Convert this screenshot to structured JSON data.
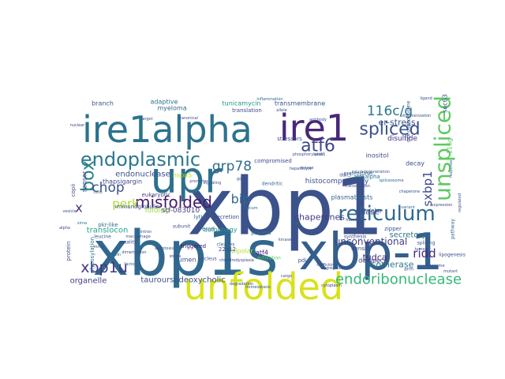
{
  "words": [
    {
      "text": "xbp1",
      "color": "#3b528b"
    },
    {
      "text": "xbp1s",
      "color": "#31688e"
    },
    {
      "text": "xbp-1",
      "color": "#355f8d"
    },
    {
      "text": "ire1alpha",
      "color": "#2c728e"
    },
    {
      "text": "ire1",
      "color": "#482777"
    },
    {
      "text": "upr",
      "color": "#2d708e"
    },
    {
      "text": "unfolded",
      "color": "#d8e219"
    },
    {
      "text": "unspliced",
      "color": "#5ec962"
    },
    {
      "text": "reticulum",
      "color": "#31688e"
    },
    {
      "text": "endoplasmic",
      "color": "#2a788e"
    },
    {
      "text": "box",
      "color": "#26828e"
    },
    {
      "text": "misfolded",
      "color": "#481a6c"
    },
    {
      "text": "atf6",
      "color": "#3e4989"
    },
    {
      "text": "spliced",
      "color": "#3b528b"
    },
    {
      "text": "116c/g",
      "color": "#2a788e"
    },
    {
      "text": "endoribonuclease",
      "color": "#35b779"
    },
    {
      "text": "xbp1u",
      "color": "#443983"
    },
    {
      "text": "grp78",
      "color": "#2f6c8e"
    },
    {
      "text": "chop",
      "color": "#3b528b"
    },
    {
      "text": "perk",
      "color": "#addc30"
    },
    {
      "text": "sxbp1",
      "color": "#3e4a89"
    },
    {
      "text": "ridd",
      "color": "#472c7a"
    },
    {
      "text": "bip",
      "color": "#31688e"
    },
    {
      "text": "x",
      "color": "#472f7d"
    },
    {
      "text": "unconventional",
      "color": "#433e85"
    },
    {
      "text": "er-stress",
      "color": "#3b528b"
    },
    {
      "text": "tauroursodeoxycholic",
      "color": "#3b528b"
    },
    {
      "text": "translocon",
      "color": "#20a486"
    },
    {
      "text": "chaperones",
      "color": "#433e85"
    },
    {
      "text": "secretory",
      "color": "#2c728e"
    },
    {
      "text": "isomerase",
      "color": "#2a788e"
    },
    {
      "text": "tudca",
      "color": "#482475"
    },
    {
      "text": "rnase",
      "color": "#3b528b"
    },
    {
      "text": "organelle",
      "color": "#433e85"
    },
    {
      "text": "disulfide",
      "color": "#46327e"
    },
    {
      "text": "folding",
      "color": "#9bd93c"
    },
    {
      "text": "stf-083010",
      "color": "#433e85"
    },
    {
      "text": "sensor",
      "color": "#3e4a89"
    },
    {
      "text": "tunicamycin",
      "color": "#1f958b"
    },
    {
      "text": "transmembrane",
      "color": "#39568c"
    },
    {
      "text": "myeloma",
      "color": "#31688e"
    },
    {
      "text": "adaptive",
      "color": "#2c728e"
    },
    {
      "text": "branch",
      "color": "#39568c"
    },
    {
      "text": "translation",
      "color": "#3e4989"
    },
    {
      "text": "endonuclease",
      "color": "#3b528b"
    },
    {
      "text": "hspa5",
      "color": "#b5de2b"
    },
    {
      "text": "thapsigargin",
      "color": "#3e4a89"
    },
    {
      "text": "bipolar",
      "color": "#b5de2b"
    },
    {
      "text": "autophagy",
      "color": "#1f958b"
    },
    {
      "text": "atf4",
      "color": "#482173"
    },
    {
      "text": "lumen",
      "color": "#3b528b"
    },
    {
      "text": "pkr-like",
      "color": "#2c728e"
    },
    {
      "text": "histocompatibility",
      "color": "#3b528b"
    },
    {
      "text": "deltaiec",
      "color": "#404688"
    },
    {
      "text": "plasmablasts",
      "color": "#33638d"
    },
    {
      "text": "inositol",
      "color": "#3e4989"
    },
    {
      "text": "decay",
      "color": "#3b528b"
    },
    {
      "text": "sec63",
      "color": "#38598c"
    },
    {
      "text": "116g",
      "color": "#5ec962"
    },
    {
      "text": "eif2alpha",
      "color": "#3b528b"
    },
    {
      "text": "atf6alpha",
      "color": "#2a788e"
    },
    {
      "text": "copii",
      "color": "#3e4a89"
    },
    {
      "text": "immunoglobulin",
      "color": "#3b528b"
    },
    {
      "text": "eukaryotic",
      "color": "#433e85"
    },
    {
      "text": "erad",
      "color": "#2a788e"
    },
    {
      "text": "22q12",
      "color": "#3e4989"
    },
    {
      "text": "pdi",
      "color": "#3b528b"
    },
    {
      "text": "triggered",
      "color": "#481467"
    },
    {
      "text": "plasma",
      "color": "#2a788e"
    },
    {
      "text": "secretion",
      "color": "#3e4a89"
    },
    {
      "text": "lytic",
      "color": "#31688e"
    },
    {
      "text": "zipper",
      "color": "#3b528b"
    },
    {
      "text": "protein",
      "color": "#3e4a89"
    },
    {
      "text": "glycosylation",
      "color": "#2c728e"
    },
    {
      "text": "density",
      "color": "#3e4989"
    },
    {
      "text": "compromised",
      "color": "#3e4989"
    },
    {
      "text": "stressors",
      "color": "#3b528b"
    },
    {
      "text": "proteostasis",
      "color": "#31688e"
    },
    {
      "text": "arm",
      "color": "#3b528b"
    },
    {
      "text": "leucine",
      "color": "#3b528b"
    },
    {
      "text": "cleaves",
      "color": "#31688e"
    },
    {
      "text": "ddit3",
      "color": "#3b528b"
    },
    {
      "text": "quality",
      "color": "#3e4a89"
    },
    {
      "text": "diphosphocholine",
      "color": "#3b528b"
    },
    {
      "text": "lipogenesis",
      "color": "#3e4a89"
    },
    {
      "text": "subunit",
      "color": "#3b528b"
    },
    {
      "text": "activation",
      "color": "#5ec962"
    },
    {
      "text": "nucleus",
      "color": "#3b528b"
    },
    {
      "text": "dendritic",
      "color": "#31688e"
    },
    {
      "text": "synthesis",
      "color": "#3e4a89"
    },
    {
      "text": "splicing",
      "color": "#3b528b"
    },
    {
      "text": "degradation",
      "color": "#3e4989"
    },
    {
      "text": "variant",
      "color": "#31688e"
    },
    {
      "text": "kinase",
      "color": "#3b528b"
    },
    {
      "text": "trafficking",
      "color": "#3e4a89"
    },
    {
      "text": "homeostasis",
      "color": "#3b528b"
    },
    {
      "text": "cytoplasm",
      "color": "#3e4989"
    },
    {
      "text": "pathway",
      "color": "#31688e"
    },
    {
      "text": "macrophage",
      "color": "#3b528b"
    },
    {
      "text": "hepatocyte",
      "color": "#3e4a89"
    },
    {
      "text": "phosphorylation",
      "color": "#3b528b"
    },
    {
      "text": "chondrodysplasia",
      "color": "#3e4989"
    },
    {
      "text": "neurodegeneration",
      "color": "#3b528b"
    },
    {
      "text": "insulin",
      "color": "#31688e"
    },
    {
      "text": "sec61",
      "color": "#3b528b"
    },
    {
      "text": "mrna",
      "color": "#3e4a89"
    },
    {
      "text": "intron",
      "color": "#3b528b"
    },
    {
      "text": "cargo",
      "color": "#3e4a89"
    },
    {
      "text": "aggregates",
      "color": "#3b528b"
    },
    {
      "text": "lipid",
      "color": "#31688e"
    },
    {
      "text": "golgi",
      "color": "#3e4989"
    },
    {
      "text": "antibody",
      "color": "#3b528b"
    },
    {
      "text": "dimerization",
      "color": "#3e4a89"
    },
    {
      "text": "oligomerization",
      "color": "#3b528b"
    },
    {
      "text": "sirna",
      "color": "#31688e"
    },
    {
      "text": "promoter",
      "color": "#3b528b"
    },
    {
      "text": "transcription",
      "color": "#3e4989"
    },
    {
      "text": "ligand",
      "color": "#3b528b"
    },
    {
      "text": "tumor",
      "color": "#3e4a89"
    },
    {
      "text": "calcium",
      "color": "#31688e"
    },
    {
      "text": "signaling",
      "color": "#3b528b"
    },
    {
      "text": "stress",
      "color": "#3e4989"
    },
    {
      "text": "mouse",
      "color": "#3b528b"
    },
    {
      "text": "human",
      "color": "#3e4a89"
    },
    {
      "text": "cells",
      "color": "#31688e"
    },
    {
      "text": "vesicle",
      "color": "#3b528b"
    },
    {
      "text": "alpha",
      "color": "#3e4989"
    },
    {
      "text": "factor",
      "color": "#3b528b"
    },
    {
      "text": "apoptosis",
      "color": "#3e4a89"
    },
    {
      "text": "inflammation",
      "color": "#31688e"
    },
    {
      "text": "allele",
      "color": "#3b528b"
    },
    {
      "text": "canonical",
      "color": "#3e4989"
    },
    {
      "text": "target",
      "color": "#3b528b"
    },
    {
      "text": "nuclear",
      "color": "#3e4a89"
    },
    {
      "text": "response",
      "color": "#31688e"
    },
    {
      "text": "regulated",
      "color": "#3b528b"
    },
    {
      "text": "ribosome",
      "color": "#3e4989"
    },
    {
      "text": "mutant",
      "color": "#3b528b"
    },
    {
      "text": "expression",
      "color": "#3e4a89"
    },
    {
      "text": "spliceosome",
      "color": "#31688e"
    },
    {
      "text": "chaperone",
      "color": "#3b528b"
    }
  ]
}
